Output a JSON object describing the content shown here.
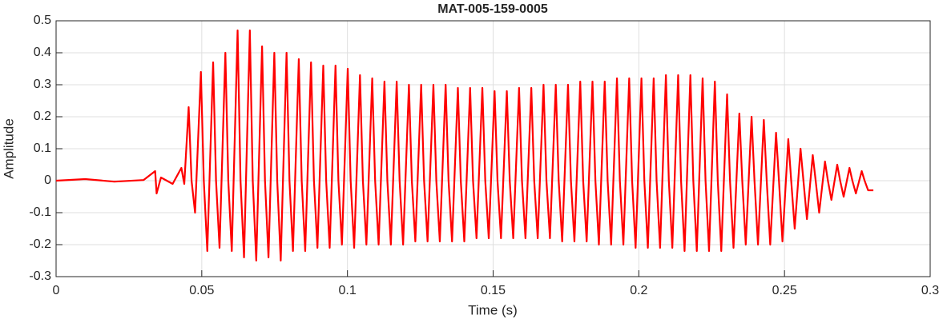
{
  "chart_data": {
    "type": "line",
    "title": "MAT-005-159-0005",
    "xlabel": "Time (s)",
    "ylabel": "Amplitude",
    "xlim": [
      0,
      0.3
    ],
    "xticks": [
      0,
      0.05,
      0.1,
      0.15,
      0.2,
      0.25,
      0.3
    ],
    "ylim": [
      -0.3,
      0.5
    ],
    "yticks": [
      -0.3,
      -0.2,
      -0.1,
      0,
      0.1,
      0.2,
      0.3,
      0.4,
      0.5
    ],
    "grid": true,
    "series": [
      {
        "color": "#ff0000",
        "x": [
          0,
          0.01,
          0.02,
          0.03,
          0.034,
          0.0345,
          0.036,
          0.04,
          0.043,
          0.044,
          0.0455,
          0.0465,
          0.0477,
          0.0497,
          0.0507,
          0.0519,
          0.0539,
          0.0549,
          0.0561,
          0.0581,
          0.0591,
          0.0603,
          0.0623,
          0.0633,
          0.0645,
          0.0665,
          0.0675,
          0.0687,
          0.0707,
          0.0717,
          0.0729,
          0.0749,
          0.0759,
          0.0771,
          0.0791,
          0.0801,
          0.0813,
          0.0833,
          0.0843,
          0.0855,
          0.0875,
          0.0885,
          0.0897,
          0.0917,
          0.0927,
          0.0939,
          0.0959,
          0.0969,
          0.0981,
          0.1001,
          0.1011,
          0.1023,
          0.1043,
          0.1053,
          0.1065,
          0.1085,
          0.1095,
          0.1107,
          0.1127,
          0.1137,
          0.1149,
          0.1169,
          0.1179,
          0.1191,
          0.1211,
          0.1221,
          0.1233,
          0.1253,
          0.1263,
          0.1275,
          0.1295,
          0.1305,
          0.1317,
          0.1337,
          0.1347,
          0.1359,
          0.1379,
          0.1389,
          0.1401,
          0.1421,
          0.1431,
          0.1443,
          0.1463,
          0.1473,
          0.1485,
          0.1505,
          0.1515,
          0.1527,
          0.1547,
          0.1557,
          0.1569,
          0.1589,
          0.1599,
          0.1611,
          0.1631,
          0.1641,
          0.1653,
          0.1673,
          0.1683,
          0.1695,
          0.1715,
          0.1725,
          0.1737,
          0.1757,
          0.1767,
          0.1779,
          0.1799,
          0.1809,
          0.1821,
          0.1841,
          0.1851,
          0.1863,
          0.1883,
          0.1893,
          0.1905,
          0.1925,
          0.1935,
          0.1947,
          0.1967,
          0.1977,
          0.1989,
          0.2009,
          0.2019,
          0.2031,
          0.2051,
          0.2061,
          0.2073,
          0.2093,
          0.2103,
          0.2115,
          0.2135,
          0.2145,
          0.2157,
          0.2177,
          0.2187,
          0.2199,
          0.2219,
          0.2229,
          0.2241,
          0.2261,
          0.2271,
          0.2283,
          0.2303,
          0.2313,
          0.2325,
          0.2345,
          0.2355,
          0.2367,
          0.2387,
          0.2397,
          0.2409,
          0.2429,
          0.2439,
          0.2451,
          0.2471,
          0.2481,
          0.2493,
          0.2513,
          0.2523,
          0.2535,
          0.2555,
          0.2565,
          0.2577,
          0.2597,
          0.2607,
          0.2619,
          0.2639,
          0.2649,
          0.2661,
          0.2681,
          0.2691,
          0.2703,
          0.2723,
          0.2733,
          0.2745,
          0.2765,
          0.2775,
          0.2787,
          0.2805
        ],
        "values": [
          0,
          0.005,
          -0.003,
          0.002,
          0.03,
          -0.04,
          0.01,
          -0.01,
          0.04,
          -0.01,
          0.23,
          0,
          -0.1,
          0.34,
          0,
          -0.22,
          0.37,
          0,
          -0.21,
          0.4,
          0,
          -0.22,
          0.47,
          0,
          -0.24,
          0.47,
          0,
          -0.25,
          0.42,
          0,
          -0.24,
          0.4,
          0,
          -0.25,
          0.4,
          0,
          -0.22,
          0.38,
          0,
          -0.22,
          0.37,
          0,
          -0.21,
          0.36,
          0,
          -0.21,
          0.36,
          0,
          -0.2,
          0.35,
          0,
          -0.21,
          0.33,
          0,
          -0.2,
          0.32,
          0,
          -0.2,
          0.31,
          0,
          -0.2,
          0.31,
          0,
          -0.2,
          0.3,
          0,
          -0.19,
          0.3,
          0,
          -0.19,
          0.3,
          0,
          -0.19,
          0.3,
          0,
          -0.19,
          0.29,
          0,
          -0.19,
          0.29,
          0,
          -0.18,
          0.29,
          0,
          -0.18,
          0.28,
          0,
          -0.18,
          0.28,
          0,
          -0.18,
          0.29,
          0,
          -0.18,
          0.29,
          0,
          -0.18,
          0.3,
          0,
          -0.18,
          0.3,
          0,
          -0.19,
          0.3,
          0,
          -0.19,
          0.31,
          0,
          -0.19,
          0.31,
          0,
          -0.2,
          0.31,
          0,
          -0.2,
          0.32,
          0,
          -0.2,
          0.32,
          0,
          -0.21,
          0.32,
          0,
          -0.21,
          0.32,
          0,
          -0.21,
          0.33,
          0,
          -0.21,
          0.33,
          0,
          -0.22,
          0.33,
          0,
          -0.22,
          0.32,
          0,
          -0.22,
          0.31,
          0,
          -0.22,
          0.27,
          0,
          -0.21,
          0.21,
          0,
          -0.2,
          0.2,
          0,
          -0.2,
          0.19,
          0,
          -0.2,
          0.15,
          0,
          -0.19,
          0.13,
          0,
          -0.15,
          0.1,
          0,
          -0.12,
          0.08,
          0,
          -0.1,
          0.06,
          0,
          -0.06,
          0.05,
          0,
          -0.05,
          0.04,
          0,
          -0.04,
          0.03,
          0,
          -0.03,
          -0.03
        ]
      }
    ]
  }
}
